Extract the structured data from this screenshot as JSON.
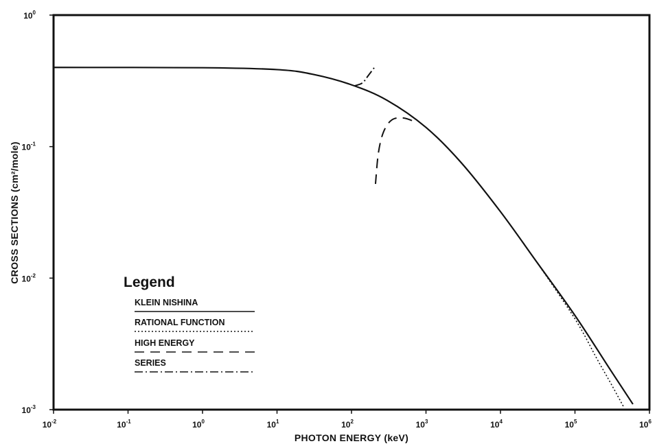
{
  "chart_data": {
    "type": "line",
    "title": "",
    "xlabel": "PHOTON ENERGY (keV)",
    "ylabel": "CROSS SECTIONS (cm²/mole)",
    "x_scale": "log",
    "y_scale": "log",
    "xlim": [
      0.01,
      1000000
    ],
    "ylim": [
      0.001,
      1
    ],
    "grid": false,
    "x_ticks": [
      {
        "base": "10",
        "exp": "-2"
      },
      {
        "base": "10",
        "exp": "-1"
      },
      {
        "base": "10",
        "exp": "0"
      },
      {
        "base": "10",
        "exp": "1"
      },
      {
        "base": "10",
        "exp": "2"
      },
      {
        "base": "10",
        "exp": "3"
      },
      {
        "base": "10",
        "exp": "4"
      },
      {
        "base": "10",
        "exp": "5"
      },
      {
        "base": "10",
        "exp": "6"
      }
    ],
    "y_ticks": [
      {
        "base": "10",
        "exp": "-3"
      },
      {
        "base": "10",
        "exp": "-2"
      },
      {
        "base": "10",
        "exp": "-1"
      },
      {
        "base": "10",
        "exp": "0"
      }
    ],
    "legend": {
      "title": "Legend",
      "placement": "lower-left"
    },
    "series": [
      {
        "name": "KLEIN NISHINA",
        "style": "solid",
        "x": [
          0.01,
          1,
          10,
          30,
          100,
          300,
          1000,
          3000,
          10000,
          30000,
          100000,
          300000,
          600000
        ],
        "y": [
          0.4,
          0.398,
          0.385,
          0.355,
          0.295,
          0.225,
          0.14,
          0.075,
          0.032,
          0.0135,
          0.0052,
          0.002,
          0.0011
        ]
      },
      {
        "name": "RATIONAL FUNCTION",
        "style": "dotted",
        "x": [
          30000,
          100000,
          200000,
          300000,
          450000
        ],
        "y": [
          0.0135,
          0.0049,
          0.0024,
          0.0016,
          0.00105
        ]
      },
      {
        "name": "HIGH ENERGY",
        "style": "dashed",
        "x": [
          210,
          230,
          270,
          350,
          500,
          700
        ],
        "y": [
          0.052,
          0.09,
          0.13,
          0.16,
          0.165,
          0.155
        ]
      },
      {
        "name": "SERIES",
        "style": "dash-dot",
        "x": [
          110,
          140,
          170,
          210
        ],
        "y": [
          0.29,
          0.305,
          0.35,
          0.41
        ]
      }
    ]
  }
}
